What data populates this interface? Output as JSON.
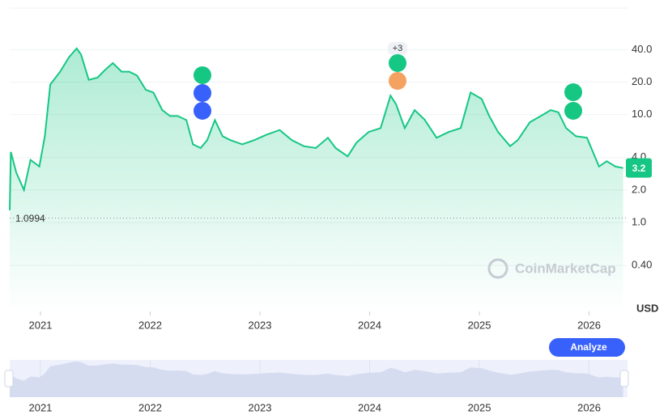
{
  "chart_data": {
    "type": "line",
    "log_scale": true,
    "grid": true,
    "series": [
      {
        "name": "price",
        "color": "#16c784",
        "x": [
          2020.72,
          2020.73,
          2020.78,
          2020.85,
          2020.91,
          2020.99,
          2021.04,
          2021.09,
          2021.18,
          2021.26,
          2021.33,
          2021.37,
          2021.44,
          2021.52,
          2021.59,
          2021.66,
          2021.74,
          2021.81,
          2021.88,
          2021.96,
          2022.03,
          2022.11,
          2022.18,
          2022.25,
          2022.33,
          2022.39,
          2022.46,
          2022.52,
          2022.59,
          2022.66,
          2022.73,
          2022.84,
          2022.95,
          2023.06,
          2023.18,
          2023.29,
          2023.4,
          2023.51,
          2023.62,
          2023.69,
          2023.8,
          2023.88,
          2023.99,
          2024.1,
          2024.19,
          2024.24,
          2024.32,
          2024.41,
          2024.5,
          2024.61,
          2024.72,
          2024.83,
          2024.92,
          2025.02,
          2025.09,
          2025.17,
          2025.28,
          2025.35,
          2025.46,
          2025.56,
          2025.65,
          2025.72,
          2025.79,
          2025.88,
          2025.98,
          2026.09,
          2026.16,
          2026.24,
          2026.31
        ],
        "values": [
          1.3,
          4.5,
          2.9,
          2.0,
          3.8,
          3.3,
          6.3,
          19,
          25,
          34,
          41,
          36,
          21,
          22,
          26,
          30,
          25,
          25,
          23,
          17,
          16,
          11,
          9.7,
          9.7,
          8.9,
          5.3,
          4.9,
          5.8,
          8.9,
          6.3,
          5.8,
          5.3,
          5.8,
          6.5,
          7.2,
          5.8,
          5.1,
          4.9,
          6.1,
          4.9,
          4.1,
          5.5,
          6.9,
          7.5,
          15,
          12.5,
          7.5,
          11,
          9,
          6.1,
          6.9,
          7.5,
          16,
          14,
          9.7,
          6.9,
          5.1,
          5.8,
          8.5,
          9.7,
          11,
          10.5,
          7.5,
          6.3,
          6.1,
          3.3,
          3.7,
          3.3,
          3.2
        ]
      }
    ],
    "xlim": [
      2020.72,
      2026.35
    ],
    "xticks": [
      2021,
      2022,
      2023,
      2024,
      2025,
      2026
    ],
    "ylim": [
      0.15,
      97
    ],
    "yticks": [
      {
        "value": 40,
        "label": "40.0"
      },
      {
        "value": 20,
        "label": "20.0"
      },
      {
        "value": 10,
        "label": "10.0"
      },
      {
        "value": 4,
        "label": "4.0"
      },
      {
        "value": 2,
        "label": "2.0"
      },
      {
        "value": 1,
        "label": "1.0"
      },
      {
        "value": 0.4,
        "label": "0.40"
      }
    ],
    "y_axis_label": "USD",
    "min_price": 1.0994,
    "current_price": 3.2,
    "event_count_label": "+3",
    "watermark": "CoinMarketCap",
    "button": "Analyze"
  }
}
